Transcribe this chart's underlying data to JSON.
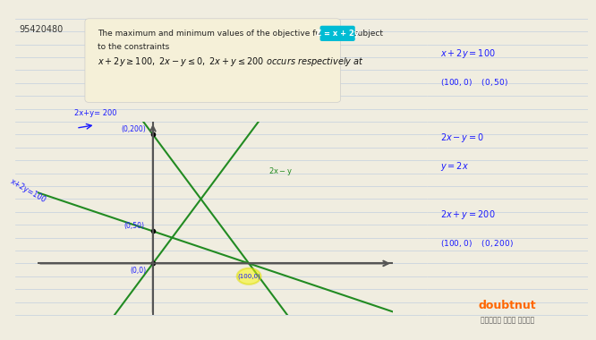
{
  "bg_color": "#f5f5dc",
  "notebook_color": "#ffffff",
  "line_color_blue": "#1a1aff",
  "line_color_green": "#228B22",
  "text_color_dark": "#1a1aff",
  "text_color_black": "#222222",
  "highlight_color": "#00bcd4",
  "yellow_highlight": "#f0f000",
  "id_text": "95420480",
  "question_text_line1": "The maximum and minimum values of the objective function",
  "question_text_highlight": "Z = x + 2y",
  "question_text_line1_end": "subject",
  "question_text_line2": "to the constraints",
  "question_text_line3": "x + 2y ≥ 100, 2x − y ≤ 0, 2x + y ≤ 200 occurs respectively at",
  "right_text": [
    "x + 2y = 100",
    "(100, 0)    (0, 50)",
    "2x − y = 0",
    "y = 2x",
    "2x + y = 200",
    "(100, 0)    (0, 200)"
  ],
  "graph_labels": [
    "2x+y= 200",
    "(0,200)",
    "x+2y=100",
    "(0,50)",
    "(0,0)",
    "(100, 0)"
  ],
  "axis_label_2x_y": "2x - y",
  "doubtnut_color": "#ff6600"
}
